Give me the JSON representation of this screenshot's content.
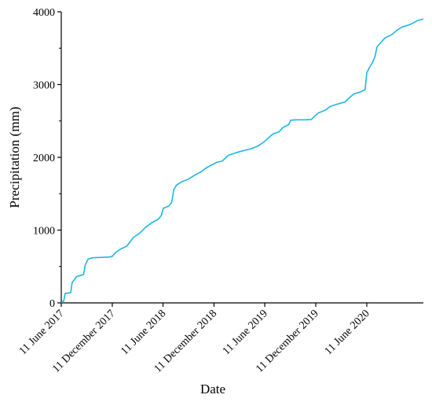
{
  "chart_data": {
    "type": "line",
    "title": "",
    "xlabel": "Date",
    "ylabel": "Precipitation (mm)",
    "ylim": [
      0,
      4000
    ],
    "xlim": [
      "2017-06-11",
      "2020-12-31"
    ],
    "grid": false,
    "legend": "none",
    "x_ticks": [
      {
        "date": "2017-06-11",
        "label": "11 June 2017"
      },
      {
        "date": "2017-12-11",
        "label": "11 December 2017"
      },
      {
        "date": "2018-06-11",
        "label": "11 June 2018"
      },
      {
        "date": "2018-12-11",
        "label": "11 December 2018"
      },
      {
        "date": "2019-06-11",
        "label": "11 June 2019"
      },
      {
        "date": "2019-12-11",
        "label": "11 December 2019"
      },
      {
        "date": "2020-06-11",
        "label": "11 June 2020"
      }
    ],
    "y_ticks": [
      0,
      1000,
      2000,
      3000,
      4000
    ],
    "series": [
      {
        "color": "#1fb5e6",
        "points": [
          [
            "2017-06-11",
            0
          ],
          [
            "2017-06-20",
            30
          ],
          [
            "2017-06-25",
            130
          ],
          [
            "2017-07-15",
            140
          ],
          [
            "2017-07-20",
            280
          ],
          [
            "2017-08-05",
            360
          ],
          [
            "2017-08-30",
            390
          ],
          [
            "2017-09-05",
            520
          ],
          [
            "2017-09-15",
            600
          ],
          [
            "2017-10-01",
            620
          ],
          [
            "2017-11-01",
            625
          ],
          [
            "2017-12-01",
            630
          ],
          [
            "2017-12-11",
            640
          ],
          [
            "2017-12-25",
            700
          ],
          [
            "2018-01-10",
            740
          ],
          [
            "2018-02-01",
            780
          ],
          [
            "2018-02-15",
            850
          ],
          [
            "2018-02-25",
            900
          ],
          [
            "2018-03-20",
            960
          ],
          [
            "2018-04-10",
            1040
          ],
          [
            "2018-05-01",
            1100
          ],
          [
            "2018-05-25",
            1150
          ],
          [
            "2018-06-05",
            1200
          ],
          [
            "2018-06-12",
            1300
          ],
          [
            "2018-07-01",
            1330
          ],
          [
            "2018-07-12",
            1380
          ],
          [
            "2018-07-20",
            1560
          ],
          [
            "2018-07-30",
            1620
          ],
          [
            "2018-08-15",
            1660
          ],
          [
            "2018-09-10",
            1700
          ],
          [
            "2018-10-05",
            1760
          ],
          [
            "2018-10-25",
            1800
          ],
          [
            "2018-11-15",
            1860
          ],
          [
            "2018-12-05",
            1900
          ],
          [
            "2018-12-20",
            1930
          ],
          [
            "2019-01-10",
            1950
          ],
          [
            "2019-02-01",
            2030
          ],
          [
            "2019-02-25",
            2060
          ],
          [
            "2019-03-25",
            2090
          ],
          [
            "2019-04-25",
            2120
          ],
          [
            "2019-05-20",
            2160
          ],
          [
            "2019-06-11",
            2220
          ],
          [
            "2019-06-25",
            2270
          ],
          [
            "2019-07-10",
            2320
          ],
          [
            "2019-08-01",
            2350
          ],
          [
            "2019-08-15",
            2410
          ],
          [
            "2019-09-05",
            2450
          ],
          [
            "2019-09-12",
            2510
          ],
          [
            "2019-10-01",
            2515
          ],
          [
            "2019-11-01",
            2515
          ],
          [
            "2019-11-25",
            2520
          ],
          [
            "2019-12-05",
            2560
          ],
          [
            "2019-12-20",
            2610
          ],
          [
            "2020-01-15",
            2650
          ],
          [
            "2020-02-01",
            2700
          ],
          [
            "2020-02-25",
            2730
          ],
          [
            "2020-03-25",
            2760
          ],
          [
            "2020-04-10",
            2820
          ],
          [
            "2020-04-25",
            2870
          ],
          [
            "2020-05-20",
            2900
          ],
          [
            "2020-06-05",
            2930
          ],
          [
            "2020-06-11",
            3160
          ],
          [
            "2020-06-20",
            3230
          ],
          [
            "2020-07-01",
            3300
          ],
          [
            "2020-07-10",
            3380
          ],
          [
            "2020-07-18",
            3520
          ],
          [
            "2020-08-01",
            3580
          ],
          [
            "2020-08-15",
            3640
          ],
          [
            "2020-09-10",
            3690
          ],
          [
            "2020-09-25",
            3740
          ],
          [
            "2020-10-15",
            3790
          ],
          [
            "2020-11-10",
            3820
          ],
          [
            "2020-12-01",
            3860
          ],
          [
            "2020-12-10",
            3880
          ],
          [
            "2020-12-31",
            3900
          ]
        ]
      }
    ]
  }
}
